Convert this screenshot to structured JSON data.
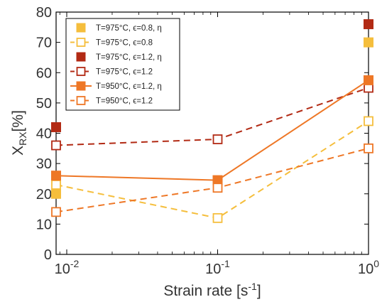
{
  "chart_data": {
    "type": "line",
    "xscale": "log",
    "xlim": [
      0.0085,
      1.0
    ],
    "ylim": [
      0,
      80
    ],
    "x_ticks": [
      {
        "value": 0.01,
        "base": "10",
        "exp": "-2"
      },
      {
        "value": 0.1,
        "base": "10",
        "exp": "-1"
      },
      {
        "value": 1,
        "base": "10",
        "exp": "0"
      }
    ],
    "y_ticks": [
      "0",
      "10",
      "20",
      "30",
      "40",
      "50",
      "60",
      "70",
      "80"
    ],
    "xlabel": {
      "text": "Strain rate [s",
      "sup": "-1",
      "tail": "]"
    },
    "ylabel": {
      "main": "X",
      "sub": "RX",
      "tail": "[%]"
    },
    "grid": false,
    "legend_position": "top-left",
    "series": [
      {
        "name": "T=975°C, ϵ=0.8, η",
        "color": "#F5BE3C",
        "style": "marker-filled",
        "x": [
          0.0085,
          1.0
        ],
        "y": [
          20,
          70
        ]
      },
      {
        "name": "T=975°C, ϵ=0.8",
        "color": "#F5BE3C",
        "style": "dashed-open",
        "x": [
          0.0085,
          0.1,
          1.0
        ],
        "y": [
          23,
          12,
          44
        ]
      },
      {
        "name": "T=975°C, ϵ=1.2, η",
        "color": "#B22A14",
        "style": "marker-filled",
        "x": [
          0.0085,
          1.0
        ],
        "y": [
          42,
          76
        ]
      },
      {
        "name": "T=975°C, ϵ=1.2",
        "color": "#B22A14",
        "style": "dashed-open",
        "x": [
          0.0085,
          0.1,
          1.0
        ],
        "y": [
          36,
          38,
          55
        ]
      },
      {
        "name": "T=950°C, ϵ=1.2, η",
        "color": "#EE7726",
        "style": "solid-filled",
        "x": [
          0.0085,
          0.1,
          1.0
        ],
        "y": [
          26,
          24.5,
          57.5
        ]
      },
      {
        "name": "T=950°C, ϵ=1.2",
        "color": "#EE7726",
        "style": "dashed-open",
        "x": [
          0.0085,
          0.1,
          1.0
        ],
        "y": [
          14,
          22,
          35
        ]
      }
    ]
  }
}
